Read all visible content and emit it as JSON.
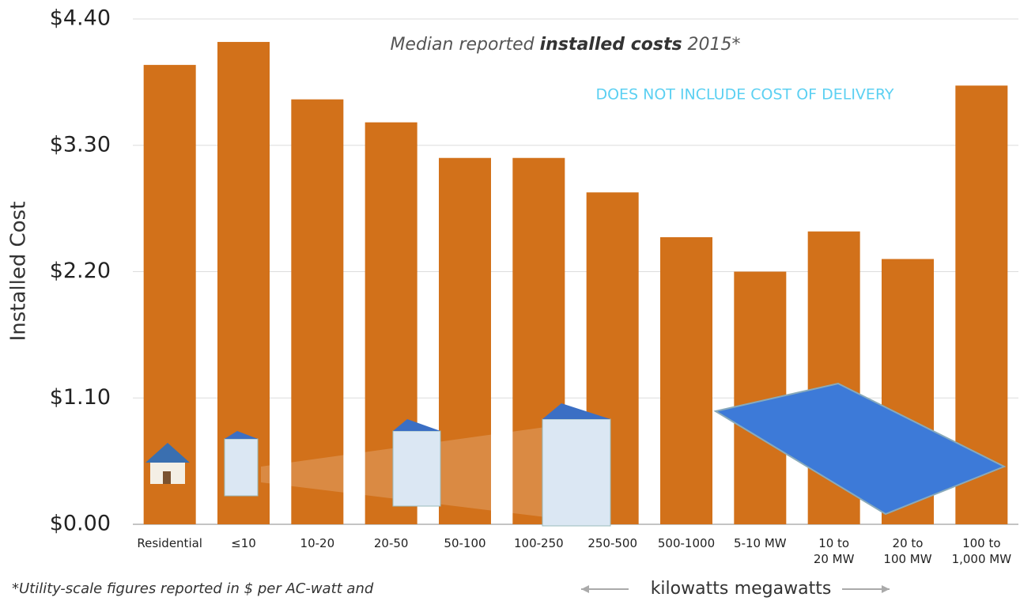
{
  "chart_data": {
    "type": "bar",
    "title_parts": [
      "Median reported ",
      "installed costs",
      " 2015*"
    ],
    "annotation": "DOES NOT INCLUDE COST OF DELIVERY",
    "y_label": "Installed Cost",
    "footnote": "*Utility-scale figures reported in $ per AC-watt and",
    "scale_labels": [
      "kilowatts",
      "megawatts"
    ],
    "categories": [
      "Residential",
      "≤10",
      "10-20",
      "20-50",
      "50-100",
      "100-250",
      "250-500",
      "500-1000",
      "5-10 MW",
      "10 to\n20 MW",
      "20 to\n100 MW",
      "100 to\n1,000 MW"
    ],
    "values": [
      4.0,
      4.2,
      3.7,
      3.5,
      3.19,
      3.19,
      2.89,
      2.5,
      2.2,
      2.55,
      2.31,
      3.82
    ],
    "color": "#d2711a",
    "ylim": [
      0,
      4.4
    ],
    "yticks": [
      {
        "value": 0,
        "label": "$0.00"
      },
      {
        "value": 1.1,
        "label": "$1.10"
      },
      {
        "value": 2.2,
        "label": "$2.20"
      },
      {
        "value": 3.3,
        "label": "$3.30"
      },
      {
        "value": 4.4,
        "label": "$4.40"
      }
    ],
    "grid": true
  }
}
